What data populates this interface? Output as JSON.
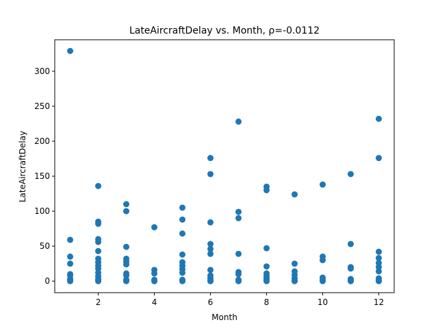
{
  "chart_data": {
    "type": "scatter",
    "title": "LateAircraftDelay vs. Month, ρ=-0.0112",
    "xlabel": "Month",
    "ylabel": "LateAircraftDelay",
    "xlim": [
      0.45,
      12.55
    ],
    "ylim": [
      -16.5,
      345
    ],
    "xticks": [
      2,
      4,
      6,
      8,
      10,
      12
    ],
    "yticks": [
      0,
      50,
      100,
      150,
      200,
      250,
      300
    ],
    "grid": false,
    "marker_color": "#1f77b4",
    "points": [
      [
        1,
        329
      ],
      [
        1,
        59
      ],
      [
        1,
        35
      ],
      [
        1,
        25
      ],
      [
        1,
        10
      ],
      [
        1,
        8
      ],
      [
        1,
        3
      ],
      [
        1,
        1
      ],
      [
        1,
        0
      ],
      [
        2,
        136
      ],
      [
        2,
        85
      ],
      [
        2,
        82
      ],
      [
        2,
        60
      ],
      [
        2,
        56
      ],
      [
        2,
        43
      ],
      [
        2,
        32
      ],
      [
        2,
        27
      ],
      [
        2,
        22
      ],
      [
        2,
        18
      ],
      [
        2,
        12
      ],
      [
        2,
        7
      ],
      [
        2,
        3
      ],
      [
        2,
        1
      ],
      [
        2,
        0
      ],
      [
        3,
        110
      ],
      [
        3,
        100
      ],
      [
        3,
        49
      ],
      [
        3,
        32
      ],
      [
        3,
        28
      ],
      [
        3,
        24
      ],
      [
        3,
        11
      ],
      [
        3,
        8
      ],
      [
        3,
        2
      ],
      [
        3,
        1
      ],
      [
        3,
        0
      ],
      [
        4,
        77
      ],
      [
        4,
        16
      ],
      [
        4,
        11
      ],
      [
        4,
        2
      ],
      [
        4,
        0
      ],
      [
        5,
        105
      ],
      [
        5,
        88
      ],
      [
        5,
        68
      ],
      [
        5,
        38
      ],
      [
        5,
        27
      ],
      [
        5,
        22
      ],
      [
        5,
        17
      ],
      [
        5,
        12
      ],
      [
        5,
        2
      ],
      [
        5,
        0
      ],
      [
        6,
        176
      ],
      [
        6,
        153
      ],
      [
        6,
        84
      ],
      [
        6,
        53
      ],
      [
        6,
        46
      ],
      [
        6,
        39
      ],
      [
        6,
        16
      ],
      [
        6,
        8
      ],
      [
        6,
        4
      ],
      [
        6,
        1
      ],
      [
        6,
        0
      ],
      [
        7,
        228
      ],
      [
        7,
        99
      ],
      [
        7,
        90
      ],
      [
        7,
        39
      ],
      [
        7,
        13
      ],
      [
        7,
        10
      ],
      [
        7,
        2
      ],
      [
        7,
        0
      ],
      [
        8,
        135
      ],
      [
        8,
        130
      ],
      [
        8,
        47
      ],
      [
        8,
        21
      ],
      [
        8,
        11
      ],
      [
        8,
        7
      ],
      [
        8,
        4
      ],
      [
        8,
        1
      ],
      [
        8,
        0
      ],
      [
        9,
        124
      ],
      [
        9,
        25
      ],
      [
        9,
        14
      ],
      [
        9,
        9
      ],
      [
        9,
        4
      ],
      [
        9,
        1
      ],
      [
        9,
        0
      ],
      [
        10,
        138
      ],
      [
        10,
        35
      ],
      [
        10,
        30
      ],
      [
        10,
        5
      ],
      [
        10,
        2
      ],
      [
        10,
        0
      ],
      [
        11,
        153
      ],
      [
        11,
        53
      ],
      [
        11,
        20
      ],
      [
        11,
        18
      ],
      [
        11,
        3
      ],
      [
        11,
        1
      ],
      [
        11,
        0
      ],
      [
        12,
        232
      ],
      [
        12,
        176
      ],
      [
        12,
        42
      ],
      [
        12,
        33
      ],
      [
        12,
        26
      ],
      [
        12,
        20
      ],
      [
        12,
        14
      ],
      [
        12,
        4
      ],
      [
        12,
        1
      ],
      [
        12,
        0
      ]
    ]
  }
}
